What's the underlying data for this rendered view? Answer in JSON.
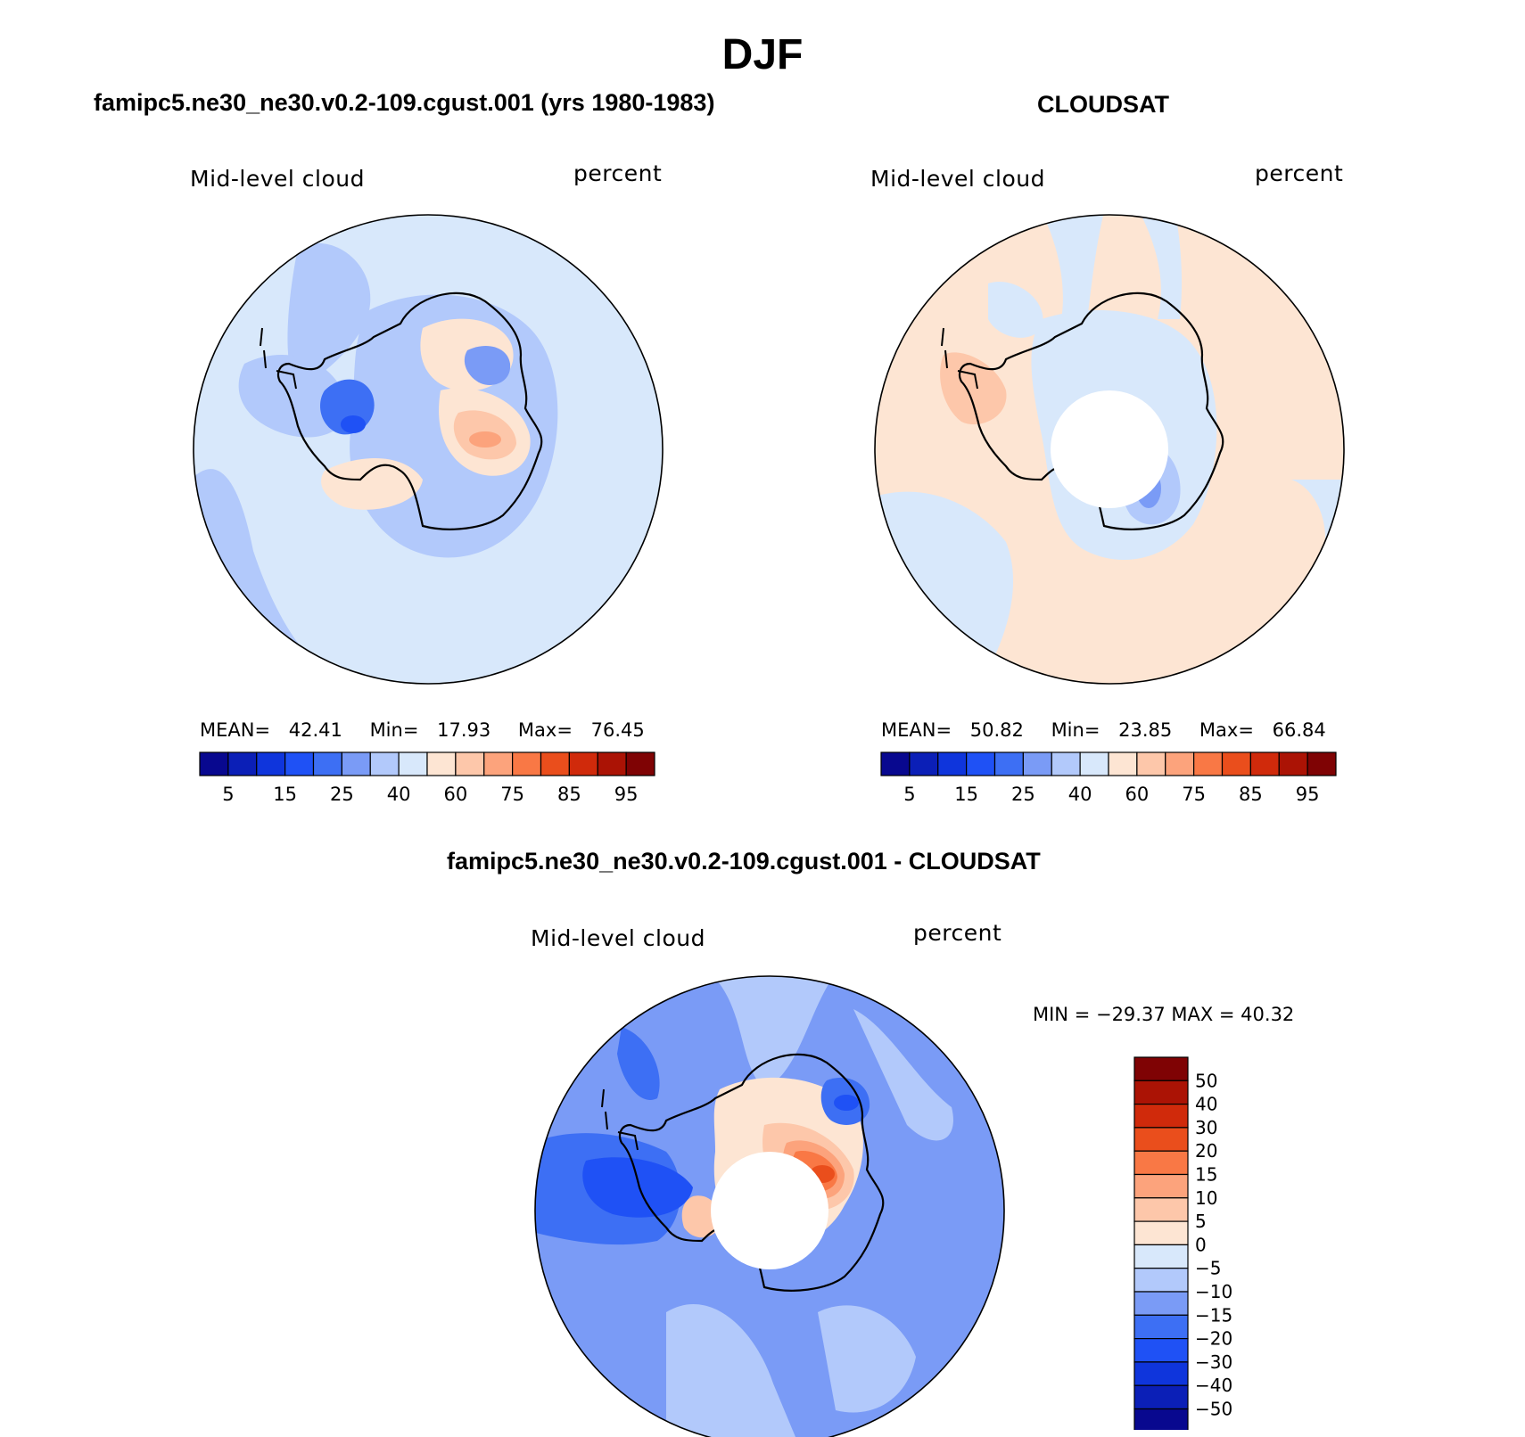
{
  "figure": {
    "title": "DJF"
  },
  "chart_data": [
    {
      "type": "polar_contour_map",
      "panel_title": "famipc5.ne30_ne30.v0.2-109.cgust.001 (yrs 1980-1983)",
      "left_label": "Mid-level cloud",
      "right_label": "percent",
      "stats": {
        "mean_label": "MEAN=",
        "mean": "42.41",
        "min_label": "Min=",
        "min": "17.93",
        "max_label": "Max=",
        "max": "76.45"
      },
      "colorbar": {
        "orientation": "horizontal",
        "levels": [
          "5",
          "15",
          "25",
          "40",
          "60",
          "75",
          "85",
          "95"
        ],
        "colors": [
          "#08088f",
          "#0b1fb7",
          "#0f35dc",
          "#1f51f5",
          "#3d6ff4",
          "#7a9bf6",
          "#b2c9fb",
          "#d8e8fb",
          "#fde5d3",
          "#fdc7aa",
          "#fca37c",
          "#f97845",
          "#ea4e1c",
          "#d02a0b",
          "#ab1305",
          "#7f0304"
        ]
      }
    },
    {
      "type": "polar_contour_map",
      "panel_title": "CLOUDSAT",
      "left_label": "Mid-level cloud",
      "right_label": "percent",
      "stats": {
        "mean_label": "MEAN=",
        "mean": "50.82",
        "min_label": "Min=",
        "min": "23.85",
        "max_label": "Max=",
        "max": "66.84"
      },
      "colorbar": {
        "orientation": "horizontal",
        "levels": [
          "5",
          "15",
          "25",
          "40",
          "60",
          "75",
          "85",
          "95"
        ],
        "colors": [
          "#08088f",
          "#0b1fb7",
          "#0f35dc",
          "#1f51f5",
          "#3d6ff4",
          "#7a9bf6",
          "#b2c9fb",
          "#d8e8fb",
          "#fde5d3",
          "#fdc7aa",
          "#fca37c",
          "#f97845",
          "#ea4e1c",
          "#d02a0b",
          "#ab1305",
          "#7f0304"
        ]
      }
    },
    {
      "type": "polar_contour_map",
      "panel_title": "famipc5.ne30_ne30.v0.2-109.cgust.001 - CLOUDSAT",
      "left_label": "Mid-level cloud",
      "right_label": "percent",
      "stats_text": "MIN = −29.37 MAX =  40.32",
      "colorbar": {
        "orientation": "vertical",
        "levels": [
          "50",
          "40",
          "30",
          "20",
          "15",
          "10",
          "5",
          "0",
          "−5",
          "−10",
          "−15",
          "−20",
          "−30",
          "−40",
          "−50"
        ],
        "colors": [
          "#7f0304",
          "#ab1305",
          "#d02a0b",
          "#ea4e1c",
          "#f97845",
          "#fca37c",
          "#fdc7aa",
          "#fde5d3",
          "#d8e8fb",
          "#b2c9fb",
          "#7a9bf6",
          "#3d6ff4",
          "#1f51f5",
          "#0f35dc",
          "#0b1fb7",
          "#08088f"
        ]
      }
    }
  ]
}
